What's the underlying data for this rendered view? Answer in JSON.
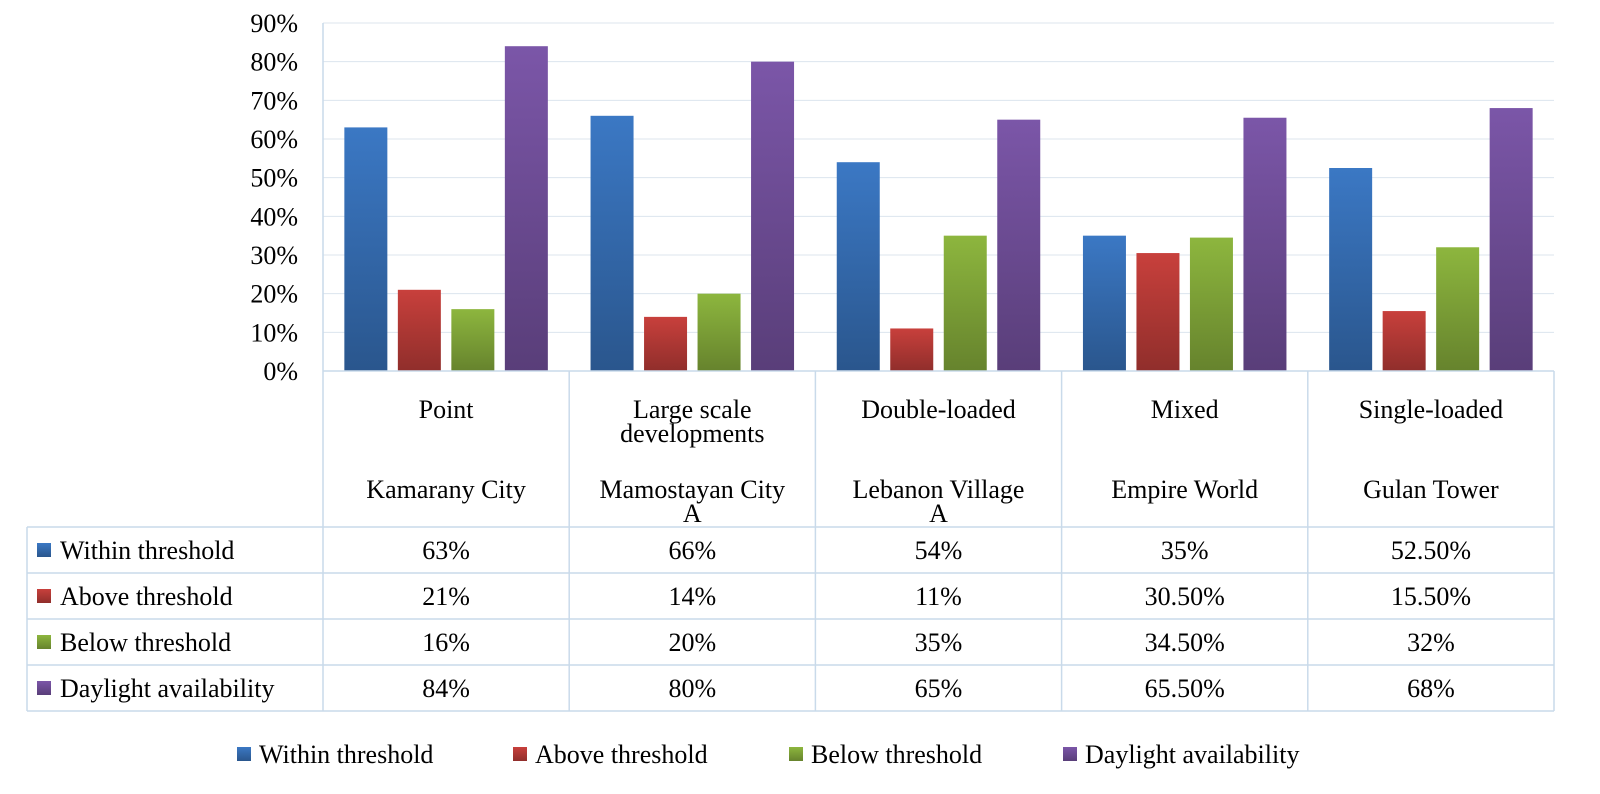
{
  "chart_data": {
    "type": "bar",
    "categories": [
      {
        "group": "Point",
        "name": "Kamarany City"
      },
      {
        "group": "Large scale developments",
        "name": "Mamostayan City A"
      },
      {
        "group": "Double-loaded",
        "name": "Lebanon Village A"
      },
      {
        "group": "Mixed",
        "name": "Empire World"
      },
      {
        "group": "Single-loaded",
        "name": "Gulan Tower"
      }
    ],
    "series": [
      {
        "name": "Within threshold",
        "color": "#3B78C4",
        "values": [
          63,
          66,
          54,
          35,
          52.5
        ],
        "labels": [
          "63%",
          "66%",
          "54%",
          "35%",
          "52.50%"
        ]
      },
      {
        "name": "Above threshold",
        "color": "#C8403C",
        "values": [
          21,
          14,
          11,
          30.5,
          15.5
        ],
        "labels": [
          "21%",
          "14%",
          "11%",
          "30.50%",
          "15.50%"
        ]
      },
      {
        "name": "Below threshold",
        "color": "#8DB63E",
        "values": [
          16,
          20,
          35,
          34.5,
          32
        ],
        "labels": [
          "16%",
          "20%",
          "35%",
          "34.50%",
          "32%"
        ]
      },
      {
        "name": "Daylight availability",
        "color": "#7B56A8",
        "values": [
          84,
          80,
          65,
          65.5,
          68
        ],
        "labels": [
          "84%",
          "80%",
          "65%",
          "65.50%",
          "68%"
        ]
      }
    ],
    "ylim": [
      0,
      90
    ],
    "yticks": [
      "0%",
      "10%",
      "20%",
      "30%",
      "40%",
      "50%",
      "60%",
      "70%",
      "80%",
      "90%"
    ],
    "grid": true,
    "data_table": true,
    "legend_position": "bottom"
  }
}
